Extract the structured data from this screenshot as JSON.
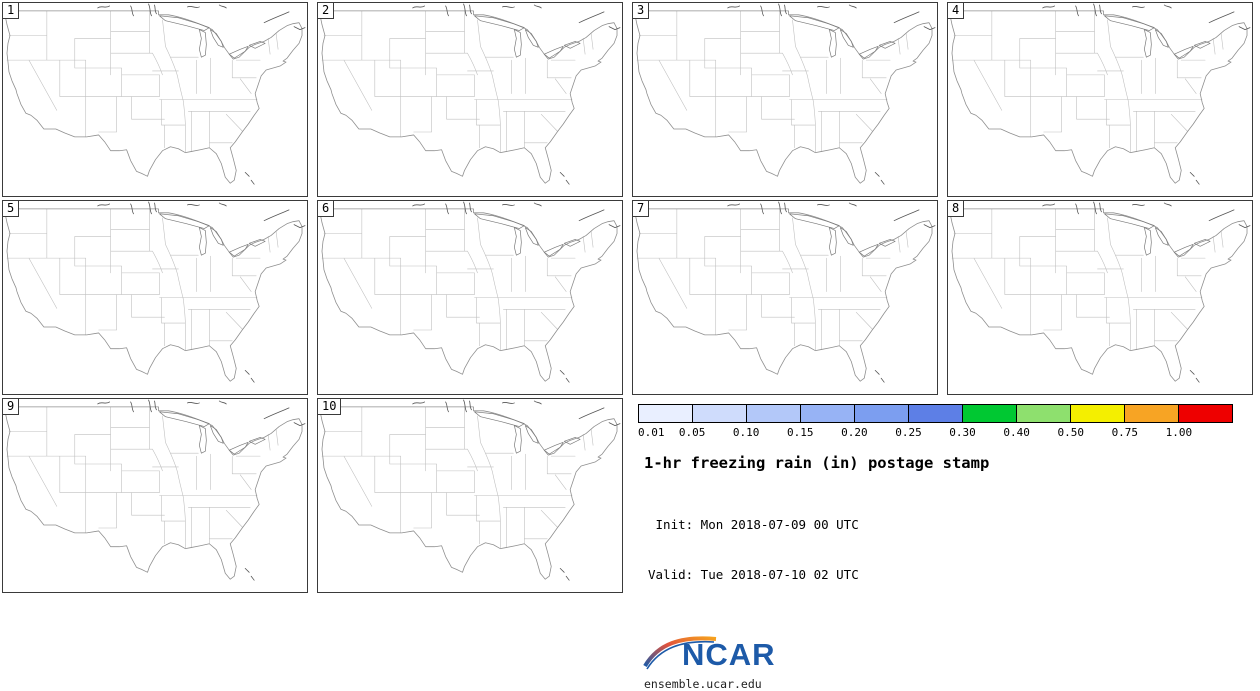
{
  "panels": [
    {
      "label": "1"
    },
    {
      "label": "2"
    },
    {
      "label": "3"
    },
    {
      "label": "4"
    },
    {
      "label": "5"
    },
    {
      "label": "6"
    },
    {
      "label": "7"
    },
    {
      "label": "8"
    },
    {
      "label": "9"
    },
    {
      "label": "10"
    }
  ],
  "legend": {
    "colorbar": {
      "labels": [
        "0.01",
        "0.05",
        "0.10",
        "0.15",
        "0.20",
        "0.25",
        "0.30",
        "0.40",
        "0.50",
        "0.75",
        "1.00"
      ],
      "colors": [
        "#e9efff",
        "#cfdcfc",
        "#b3c8f9",
        "#97b3f5",
        "#7c9ef0",
        "#5d7fe6",
        "#00c832",
        "#8ee06e",
        "#f4ef00",
        "#f7a424",
        "#ee0000"
      ]
    },
    "title": "1-hr freezing rain (in) postage stamp",
    "init_line": " Init: Mon 2018-07-09 00 UTC",
    "valid_line": "Valid: Tue 2018-07-10 02 UTC",
    "logo_text": "NCAR",
    "site_text": "ensemble.ucar.edu"
  }
}
